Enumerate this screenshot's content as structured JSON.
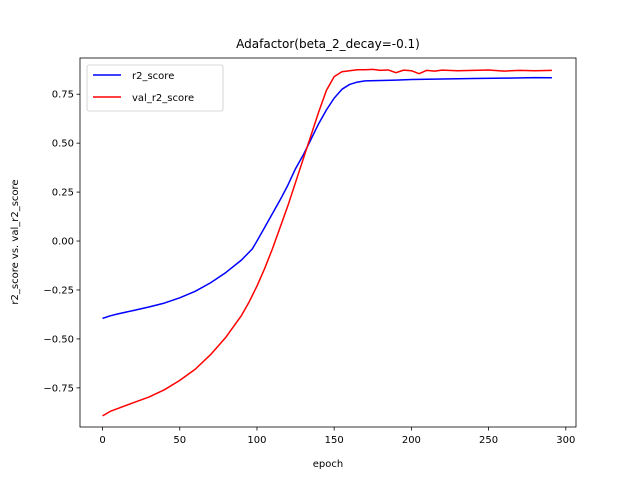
{
  "chart_data": {
    "type": "line",
    "title": "Adafactor(beta_2_decay=-0.1)",
    "xlabel": "epoch",
    "ylabel": "r2_score vs. val_r2_score",
    "xlim": [
      -14.6,
      306.6
    ],
    "ylim": [
      -0.95,
      0.935
    ],
    "xticks": [
      0,
      50,
      100,
      150,
      200,
      250,
      300
    ],
    "yticks": [
      -0.75,
      -0.5,
      -0.25,
      0.0,
      0.25,
      0.5,
      0.75
    ],
    "xtick_labels": [
      "0",
      "50",
      "100",
      "150",
      "200",
      "250",
      "300"
    ],
    "ytick_labels": [
      "−0.75",
      "−0.50",
      "−0.25",
      "0.00",
      "0.25",
      "0.50",
      "0.75"
    ],
    "legend_position": "top-left",
    "grid": false,
    "series": [
      {
        "name": "r2_score",
        "color": "#0000ff",
        "x": [
          0,
          5,
          10,
          20,
          30,
          40,
          50,
          60,
          70,
          80,
          90,
          97,
          100,
          105,
          110,
          115,
          120,
          125,
          130,
          135,
          140,
          145,
          150,
          155,
          160,
          165,
          170,
          180,
          190,
          200,
          220,
          240,
          260,
          280,
          291
        ],
        "y": [
          -0.395,
          -0.382,
          -0.372,
          -0.355,
          -0.337,
          -0.317,
          -0.29,
          -0.257,
          -0.213,
          -0.16,
          -0.097,
          -0.04,
          0.0,
          0.07,
          0.14,
          0.21,
          0.285,
          0.37,
          0.44,
          0.52,
          0.6,
          0.67,
          0.73,
          0.775,
          0.8,
          0.812,
          0.818,
          0.82,
          0.822,
          0.825,
          0.828,
          0.83,
          0.832,
          0.835,
          0.834
        ]
      },
      {
        "name": "val_r2_score",
        "color": "#ff0000",
        "x": [
          0,
          5,
          10,
          20,
          30,
          40,
          50,
          60,
          70,
          80,
          90,
          95,
          100,
          105,
          110,
          115,
          120,
          125,
          130,
          135,
          140,
          145,
          150,
          155,
          160,
          165,
          170,
          175,
          180,
          185,
          190,
          195,
          200,
          205,
          210,
          215,
          220,
          230,
          240,
          250,
          260,
          270,
          280,
          291
        ],
        "y": [
          -0.893,
          -0.87,
          -0.855,
          -0.826,
          -0.797,
          -0.76,
          -0.712,
          -0.655,
          -0.58,
          -0.49,
          -0.38,
          -0.31,
          -0.23,
          -0.14,
          -0.04,
          0.07,
          0.18,
          0.3,
          0.42,
          0.54,
          0.66,
          0.77,
          0.84,
          0.865,
          0.87,
          0.875,
          0.875,
          0.877,
          0.872,
          0.874,
          0.86,
          0.873,
          0.87,
          0.855,
          0.872,
          0.868,
          0.873,
          0.87,
          0.872,
          0.874,
          0.868,
          0.872,
          0.87,
          0.872
        ]
      }
    ]
  }
}
